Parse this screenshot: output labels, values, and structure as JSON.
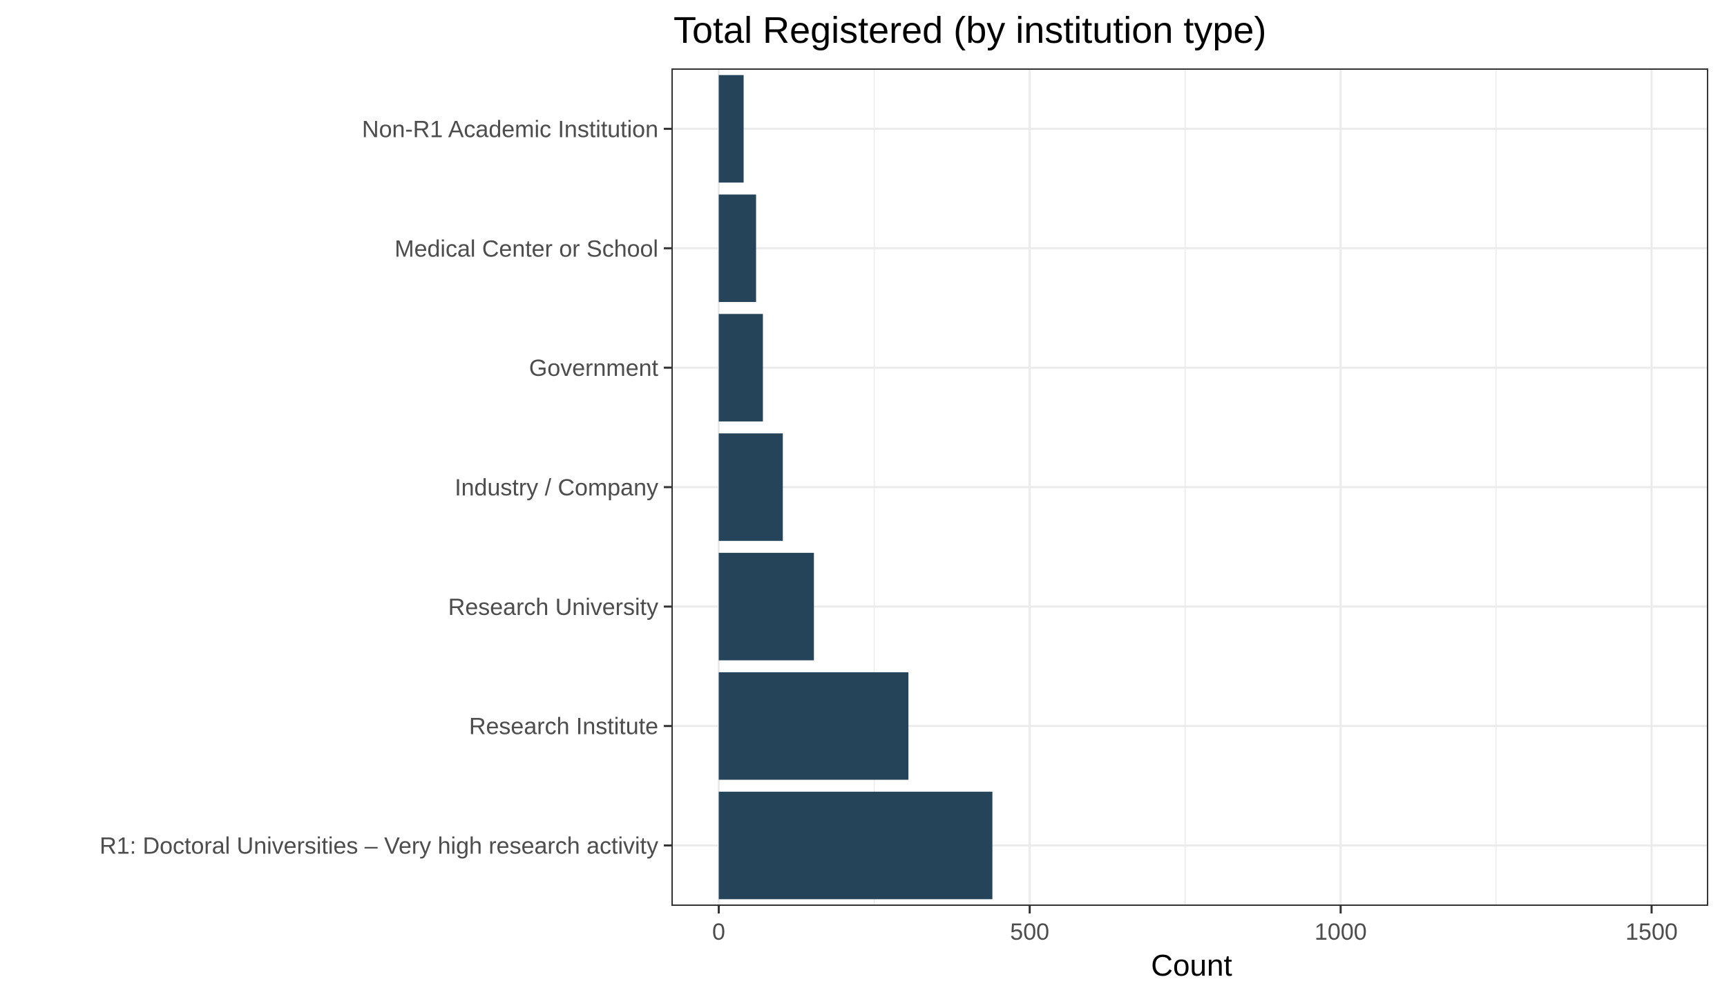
{
  "chart_data": {
    "type": "bar",
    "orientation": "horizontal",
    "title": "Total Registered (by institution type)",
    "xlabel": "Count",
    "ylabel": "",
    "categories": [
      "Non-R1 Academic Institution",
      "Medical Center or School",
      "Government",
      "Industry / Company",
      "Research University",
      "Research Institute",
      "R1: Doctoral Universities – Very high research activity"
    ],
    "values": [
      40,
      60,
      71,
      103,
      153,
      305,
      440
    ],
    "xlim": [
      -75,
      1590
    ],
    "xticks": [
      0,
      500,
      1000,
      1500
    ],
    "xtick_labels": [
      "0",
      "500",
      "1000",
      "1500"
    ],
    "grid": true,
    "bar_color": "#254459",
    "legend": "none"
  }
}
